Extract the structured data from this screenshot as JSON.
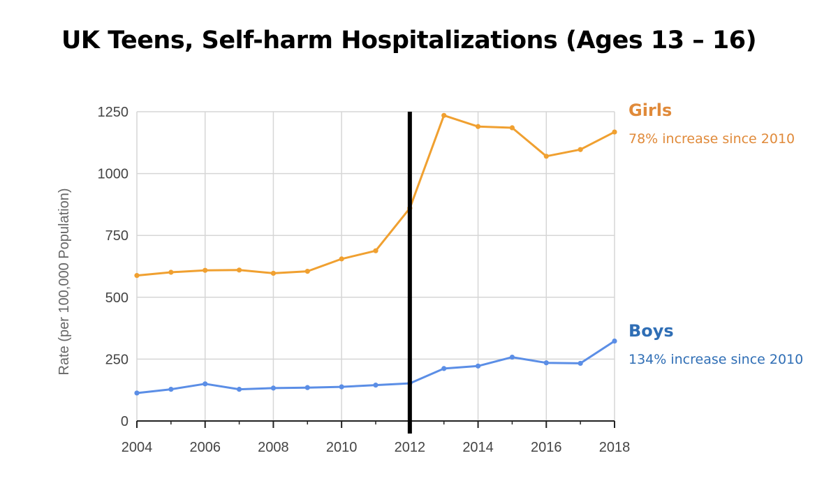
{
  "title": "UK Teens, Self-harm Hospitalizations (Ages 13 – 16)",
  "chart_data": {
    "type": "line",
    "title": "UK Teens, Self-harm Hospitalizations (Ages 13 – 16)",
    "xlabel": "",
    "ylabel": "Rate (per 100,000 Population)",
    "xlim": [
      2004,
      2018
    ],
    "ylim": [
      0,
      1250
    ],
    "x_ticks": [
      2004,
      2006,
      2008,
      2010,
      2012,
      2014,
      2016,
      2018
    ],
    "y_ticks": [
      0,
      250,
      500,
      750,
      1000,
      1250
    ],
    "grid": true,
    "x": [
      2004,
      2005,
      2006,
      2007,
      2008,
      2009,
      2010,
      2011,
      2012,
      2013,
      2014,
      2015,
      2016,
      2017,
      2018
    ],
    "series": [
      {
        "name": "Girls",
        "annotation": "78% increase since 2010",
        "color": "#f0a030",
        "label_color": "#e08a3a",
        "values": [
          588,
          601,
          609,
          610,
          597,
          605,
          655,
          688,
          860,
          1235,
          1190,
          1185,
          1070,
          1097,
          1168
        ]
      },
      {
        "name": "Boys",
        "annotation": "134% increase since 2010",
        "color": "#5b8ee6",
        "label_color": "#2f6eb5",
        "values": [
          113,
          128,
          150,
          128,
          133,
          135,
          138,
          145,
          152,
          212,
          222,
          258,
          235,
          233,
          323
        ]
      }
    ],
    "reference_line": {
      "x": 2012,
      "color": "#000000"
    }
  }
}
